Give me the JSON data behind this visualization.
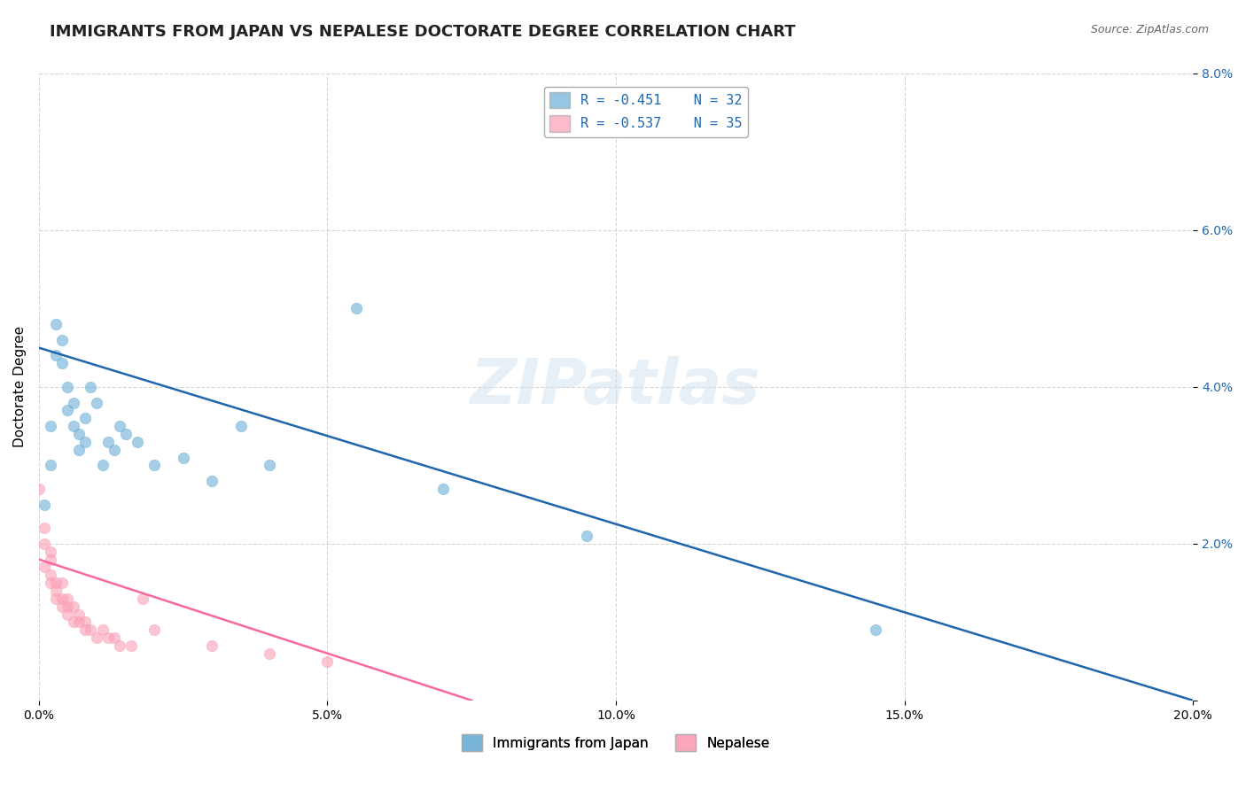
{
  "title": "IMMIGRANTS FROM JAPAN VS NEPALESE DOCTORATE DEGREE CORRELATION CHART",
  "source": "Source: ZipAtlas.com",
  "xlabel": "",
  "ylabel": "Doctorate Degree",
  "xlim": [
    0,
    0.2
  ],
  "ylim": [
    0,
    0.08
  ],
  "xticks": [
    0.0,
    0.05,
    0.1,
    0.15,
    0.2
  ],
  "yticks": [
    0.0,
    0.02,
    0.04,
    0.06,
    0.08
  ],
  "xtick_labels": [
    "0.0%",
    "5.0%",
    "10.0%",
    "15.0%",
    "20.0%"
  ],
  "ytick_labels": [
    "",
    "2.0%",
    "4.0%",
    "6.0%",
    "8.0%"
  ],
  "blue_scatter": {
    "x": [
      0.001,
      0.002,
      0.002,
      0.003,
      0.003,
      0.004,
      0.004,
      0.005,
      0.005,
      0.006,
      0.006,
      0.007,
      0.007,
      0.008,
      0.008,
      0.009,
      0.01,
      0.011,
      0.012,
      0.013,
      0.014,
      0.015,
      0.017,
      0.02,
      0.025,
      0.03,
      0.035,
      0.04,
      0.055,
      0.07,
      0.095,
      0.145
    ],
    "y": [
      0.025,
      0.035,
      0.03,
      0.048,
      0.044,
      0.046,
      0.043,
      0.04,
      0.037,
      0.038,
      0.035,
      0.034,
      0.032,
      0.036,
      0.033,
      0.04,
      0.038,
      0.03,
      0.033,
      0.032,
      0.035,
      0.034,
      0.033,
      0.03,
      0.031,
      0.028,
      0.035,
      0.03,
      0.05,
      0.027,
      0.021,
      0.009
    ]
  },
  "pink_scatter": {
    "x": [
      0.0,
      0.001,
      0.001,
      0.001,
      0.002,
      0.002,
      0.002,
      0.002,
      0.003,
      0.003,
      0.003,
      0.004,
      0.004,
      0.004,
      0.005,
      0.005,
      0.005,
      0.006,
      0.006,
      0.007,
      0.007,
      0.008,
      0.008,
      0.009,
      0.01,
      0.011,
      0.012,
      0.013,
      0.014,
      0.016,
      0.018,
      0.02,
      0.03,
      0.04,
      0.05
    ],
    "y": [
      0.027,
      0.022,
      0.02,
      0.017,
      0.019,
      0.016,
      0.018,
      0.015,
      0.015,
      0.014,
      0.013,
      0.015,
      0.013,
      0.012,
      0.013,
      0.012,
      0.011,
      0.012,
      0.01,
      0.011,
      0.01,
      0.01,
      0.009,
      0.009,
      0.008,
      0.009,
      0.008,
      0.008,
      0.007,
      0.007,
      0.013,
      0.009,
      0.007,
      0.006,
      0.005
    ]
  },
  "blue_line": {
    "x": [
      0.0,
      0.2
    ],
    "y": [
      0.045,
      0.0
    ]
  },
  "pink_line": {
    "x": [
      0.0,
      0.075
    ],
    "y": [
      0.018,
      0.0
    ]
  },
  "legend": {
    "blue_label": "R = -0.451    N = 32",
    "pink_label": "R = -0.537    N = 35"
  },
  "legend2": {
    "japan_label": "Immigrants from Japan",
    "nepalese_label": "Nepalese"
  },
  "blue_color": "#6baed6",
  "pink_color": "#fa9fb5",
  "blue_line_color": "#2166ac",
  "pink_line_color": "#f768a1",
  "background_color": "#ffffff",
  "watermark": "ZIPatlas",
  "title_fontsize": 13,
  "axis_label_fontsize": 11
}
